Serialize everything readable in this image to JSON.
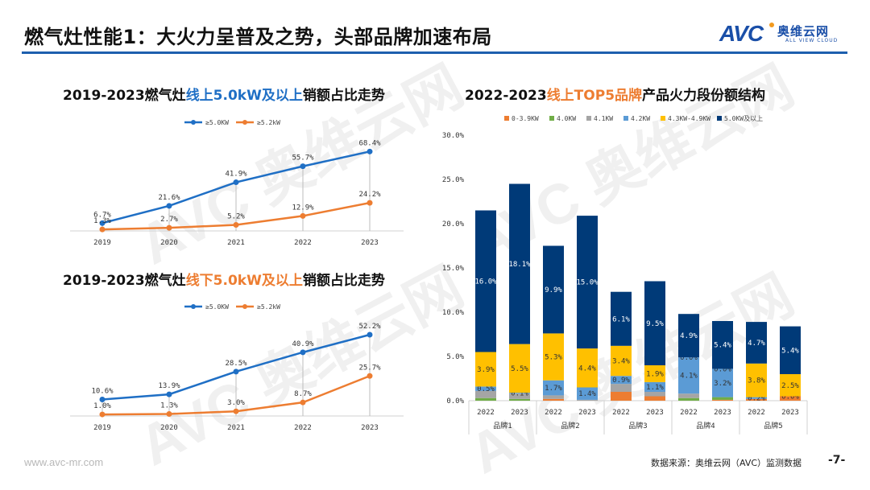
{
  "header": {
    "title": "燃气灶性能1：大火力呈普及之势，头部品牌加速布局",
    "logo": {
      "mark": "AVC",
      "cn": "奥维云网",
      "en": "ALL VIEW CLOUD"
    }
  },
  "colors": {
    "rule": "#1d5fae",
    "series_blue": "#1f6fc5",
    "series_orange": "#ed7d31",
    "seg_0_3_9": "#ed7d31",
    "seg_4_0": "#70ad47",
    "seg_4_1": "#a5a5a5",
    "seg_4_2": "#5b9bd5",
    "seg_4_3_4_9": "#ffc000",
    "seg_5_0": "#003a78"
  },
  "chart_data": [
    {
      "type": "line",
      "title_parts": [
        "2019-2023燃气灶",
        "线上5.0kW及以上",
        "销额占比走势"
      ],
      "x": [
        "2019",
        "2020",
        "2021",
        "2022",
        "2023"
      ],
      "series": [
        {
          "name": "≥5.0KW",
          "values": [
            6.7,
            21.6,
            41.9,
            55.7,
            68.4
          ],
          "labels": [
            "6.7%",
            "21.6%",
            "41.9%",
            "55.7%",
            "68.4%"
          ]
        },
        {
          "name": "≥5.2kW",
          "values": [
            1.3,
            2.7,
            5.2,
            12.9,
            24.2
          ],
          "labels": [
            "1.3%",
            "2.7%",
            "5.2%",
            "12.9%",
            "24.2%"
          ]
        }
      ],
      "ylim": [
        0,
        70
      ],
      "legend": "top-center",
      "unit": "%"
    },
    {
      "type": "line",
      "title_parts": [
        "2019-2023燃气灶",
        "线下5.0kW及以上",
        "销额占比走势"
      ],
      "x": [
        "2019",
        "2020",
        "2021",
        "2022",
        "2023"
      ],
      "series": [
        {
          "name": "≥5.0KW",
          "values": [
            10.6,
            13.9,
            28.5,
            40.9,
            52.2
          ],
          "labels": [
            "10.6%",
            "13.9%",
            "28.5%",
            "40.9%",
            "52.2%"
          ]
        },
        {
          "name": "≥5.2kW",
          "values": [
            1.0,
            1.3,
            3.0,
            8.7,
            25.7
          ],
          "labels": [
            "1.0%",
            "1.3%",
            "3.0%",
            "8.7%",
            "25.7%"
          ]
        }
      ],
      "ylim": [
        0,
        55
      ],
      "legend": "top-center",
      "unit": "%"
    },
    {
      "type": "bar",
      "stacked": true,
      "title_parts": [
        "2022-2023",
        "线上TOP5品牌",
        "产品火力段份额结构"
      ],
      "groups": [
        "品牌1",
        "品牌2",
        "品牌3",
        "品牌4",
        "品牌5"
      ],
      "categories": [
        "2022",
        "2023",
        "2022",
        "2023",
        "2022",
        "2023",
        "2022",
        "2023",
        "2022",
        "2023"
      ],
      "series": [
        {
          "name": "0-3.9KW",
          "values": [
            0.0,
            0.0,
            0.2,
            0.0,
            1.0,
            0.5,
            0.0,
            0.1,
            0.2,
            0.5
          ],
          "labels": [
            "",
            "",
            "",
            "",
            "",
            "",
            "",
            "",
            "",
            ""
          ]
        },
        {
          "name": "4.0KW",
          "values": [
            0.3,
            0.2,
            0.0,
            0.0,
            0.0,
            0.0,
            0.3,
            0.3,
            0.0,
            0.0
          ],
          "labels": [
            "",
            "",
            "",
            "",
            "",
            "",
            "",
            "",
            "",
            ""
          ]
        },
        {
          "name": "4.1KW",
          "values": [
            0.8,
            0.6,
            0.4,
            0.1,
            0.9,
            0.5,
            0.5,
            0.0,
            0.0,
            0.0
          ],
          "labels": [
            "",
            "",
            "",
            "",
            "",
            "",
            "",
            "",
            "",
            ""
          ]
        },
        {
          "name": "4.2KW",
          "values": [
            0.5,
            0.1,
            1.7,
            1.4,
            0.9,
            1.1,
            4.1,
            3.2,
            0.2,
            0.0
          ],
          "labels": [
            "0.5%",
            "0.1%",
            "1.7%",
            "1.4%",
            "0.9%",
            "1.1%",
            "4.1%",
            "3.2%",
            "0.2%",
            "0.0%"
          ]
        },
        {
          "name": "4.3KW-4.9KW",
          "values": [
            3.9,
            5.5,
            5.3,
            4.4,
            3.4,
            1.9,
            0.0,
            0.0,
            3.8,
            2.5
          ],
          "labels": [
            "3.9%",
            "5.5%",
            "5.3%",
            "4.4%",
            "3.4%",
            "1.9%",
            "0.0%",
            "0.0%",
            "3.8%",
            "2.5%"
          ]
        },
        {
          "name": "5.0KW及以上",
          "values": [
            16.0,
            18.1,
            9.9,
            15.0,
            6.1,
            9.5,
            4.9,
            5.4,
            4.7,
            5.4
          ],
          "labels": [
            "16.0%",
            "18.1%",
            "9.9%",
            "15.0%",
            "6.1%",
            "9.5%",
            "4.9%",
            "5.4%",
            "4.7%",
            "5.4%"
          ]
        }
      ],
      "yticks": [
        "0.0%",
        "5.0%",
        "10.0%",
        "15.0%",
        "20.0%",
        "25.0%",
        "30.0%"
      ],
      "ylim": [
        0,
        30
      ],
      "legend": "top-center"
    }
  ],
  "footer": {
    "url": "www.avc-mr.com",
    "source": "数据来源：奥维云网（AVC）监测数据",
    "page": "-7-"
  }
}
